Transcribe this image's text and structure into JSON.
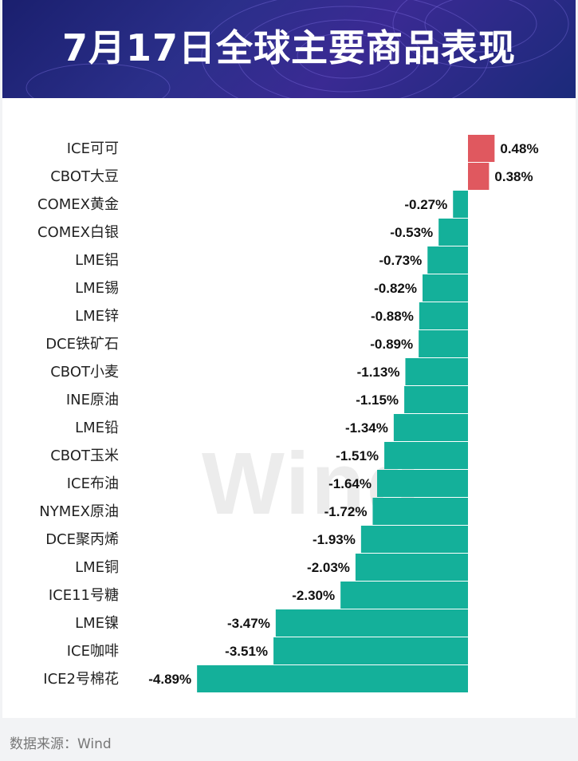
{
  "header": {
    "title": "7月17日全球主要商品表现"
  },
  "footer": {
    "source": "数据来源：Wind"
  },
  "watermark": "Wind",
  "colors": {
    "positive": "#e0585f",
    "negative": "#14b09a",
    "banner": "#2b2f8a"
  },
  "chart_data": {
    "type": "bar",
    "orientation": "horizontal",
    "title": "7月17日全球主要商品表现",
    "xlabel": "",
    "ylabel": "",
    "unit": "%",
    "categories": [
      "ICE可可",
      "CBOT大豆",
      "COMEX黄金",
      "COMEX白银",
      "LME铝",
      "LME锡",
      "LME锌",
      "DCE铁矿石",
      "CBOT小麦",
      "INE原油",
      "LME铅",
      "CBOT玉米",
      "ICE布油",
      "NYMEX原油",
      "DCE聚丙烯",
      "LME铜",
      "ICE11号糖",
      "LME镍",
      "ICE咖啡",
      "ICE2号棉花"
    ],
    "values": [
      0.48,
      0.38,
      -0.27,
      -0.53,
      -0.73,
      -0.82,
      -0.88,
      -0.89,
      -1.13,
      -1.15,
      -1.34,
      -1.51,
      -1.64,
      -1.72,
      -1.93,
      -2.03,
      -2.3,
      -3.47,
      -3.51,
      -4.89
    ],
    "labels": [
      "0.48%",
      "0.38%",
      "-0.27%",
      "-0.53%",
      "-0.73%",
      "-0.82%",
      "-0.88%",
      "-0.89%",
      "-1.13%",
      "-1.15%",
      "-1.34%",
      "-1.51%",
      "-1.64%",
      "-1.72%",
      "-1.93%",
      "-2.03%",
      "-2.30%",
      "-3.47%",
      "-3.51%",
      "-4.89%"
    ],
    "grid": false,
    "legend": "none"
  }
}
